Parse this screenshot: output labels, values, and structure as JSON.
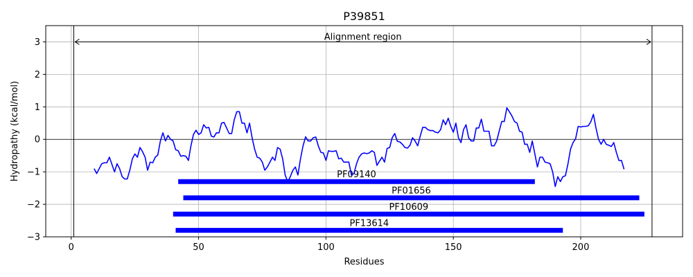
{
  "chart_data": {
    "type": "line",
    "title": "P39851",
    "xlabel": "Residues",
    "ylabel": "Hydropathy (kcal/mol)",
    "xlim": [
      -10,
      240
    ],
    "ylim": [
      -3,
      3.5
    ],
    "xticks": [
      0,
      50,
      100,
      150,
      200
    ],
    "yticks": [
      -3,
      -2,
      -1,
      0,
      1,
      2,
      3
    ],
    "grid": true,
    "line_color": "#0000ff",
    "bar_color": "#0000ff",
    "alignment_region": {
      "label": "Alignment region",
      "start": 1,
      "end": 228,
      "y": 3
    },
    "series": [
      {
        "x": [
          9,
          10,
          12,
          13,
          14,
          15,
          17,
          18,
          19,
          20,
          21,
          22,
          23,
          24,
          25,
          26,
          27,
          28,
          29,
          30,
          31,
          32,
          33,
          34,
          35,
          36,
          37,
          38,
          39,
          40,
          41,
          42,
          43,
          44,
          45,
          46,
          47,
          48,
          49,
          50,
          51,
          52,
          53,
          54,
          55,
          56,
          57,
          58,
          59,
          60,
          61,
          62,
          63,
          64,
          65,
          66,
          67,
          68,
          69,
          70,
          71,
          72,
          73,
          74,
          75,
          76,
          77,
          78,
          79,
          80,
          81,
          82,
          83,
          84,
          85,
          86,
          87,
          88,
          89,
          90,
          91,
          92,
          93,
          94,
          95,
          96,
          97,
          98,
          99,
          100,
          101,
          102,
          103,
          104,
          105,
          106,
          107,
          108,
          109,
          110,
          111,
          112,
          113,
          114,
          115,
          116,
          117,
          118,
          119,
          120,
          121,
          122,
          123,
          124,
          125,
          126,
          127,
          128,
          129,
          130,
          131,
          132,
          133,
          134,
          135,
          136,
          137,
          138,
          139,
          140,
          141,
          142,
          143,
          144,
          145,
          146,
          147,
          148,
          149,
          150,
          151,
          152,
          153,
          154,
          155,
          156,
          157,
          158,
          159,
          160,
          161,
          162,
          163,
          164,
          165,
          166,
          167,
          168,
          169,
          170,
          171,
          172,
          173,
          174,
          175,
          176,
          177,
          178,
          179,
          180,
          181,
          182,
          183,
          184,
          185,
          186,
          187,
          188,
          189,
          190,
          191,
          192,
          193,
          194,
          195,
          196,
          197,
          198,
          199,
          200,
          201,
          202,
          203,
          204,
          205,
          206,
          207,
          208,
          209,
          210,
          211,
          212,
          213,
          214,
          215,
          216,
          217
        ],
        "y": [
          -0.9,
          -1.05,
          -0.75,
          -0.72,
          -0.72,
          -0.55,
          -1.0,
          -0.75,
          -0.9,
          -1.15,
          -1.22,
          -1.22,
          -0.95,
          -0.6,
          -0.45,
          -0.55,
          -0.25,
          -0.38,
          -0.55,
          -0.95,
          -0.7,
          -0.72,
          -0.55,
          -0.48,
          -0.05,
          0.2,
          -0.05,
          0.12,
          0.0,
          -0.05,
          -0.32,
          -0.35,
          -0.52,
          -0.5,
          -0.52,
          -0.65,
          -0.2,
          0.15,
          0.28,
          0.15,
          0.2,
          0.45,
          0.35,
          0.37,
          0.1,
          0.07,
          0.2,
          0.2,
          0.5,
          0.52,
          0.35,
          0.18,
          0.18,
          0.6,
          0.85,
          0.85,
          0.5,
          0.5,
          0.2,
          0.5,
          0.05,
          -0.3,
          -0.55,
          -0.58,
          -0.7,
          -0.95,
          -0.85,
          -0.7,
          -0.55,
          -0.65,
          -0.25,
          -0.3,
          -0.6,
          -1.1,
          -1.3,
          -1.15,
          -0.95,
          -0.85,
          -1.1,
          -0.6,
          -0.2,
          0.08,
          -0.05,
          -0.05,
          0.05,
          0.07,
          -0.2,
          -0.4,
          -0.42,
          -0.65,
          -0.35,
          -0.37,
          -0.37,
          -0.35,
          -0.6,
          -0.58,
          -0.7,
          -0.7,
          -0.7,
          -1.1,
          -1.05,
          -0.75,
          -0.55,
          -0.45,
          -0.42,
          -0.44,
          -0.42,
          -0.35,
          -0.4,
          -0.8,
          -0.67,
          -0.55,
          -0.7,
          -0.28,
          -0.25,
          0.05,
          0.18,
          -0.06,
          -0.08,
          -0.15,
          -0.25,
          -0.27,
          -0.18,
          0.05,
          -0.05,
          -0.2,
          0.1,
          0.37,
          0.37,
          0.3,
          0.27,
          0.27,
          0.22,
          0.2,
          0.3,
          0.6,
          0.45,
          0.65,
          0.4,
          0.22,
          0.5,
          0.05,
          -0.1,
          0.3,
          0.45,
          0.05,
          -0.05,
          -0.05,
          0.35,
          0.35,
          0.62,
          0.25,
          0.25,
          0.25,
          -0.2,
          -0.2,
          -0.05,
          0.25,
          0.55,
          0.55,
          0.97,
          0.85,
          0.72,
          0.55,
          0.5,
          0.25,
          0.22,
          -0.15,
          -0.15,
          -0.4,
          -0.05,
          -0.45,
          -0.85,
          -0.55,
          -0.55,
          -0.7,
          -0.72,
          -0.75,
          -1.0,
          -1.45,
          -1.15,
          -1.3,
          -1.15,
          -1.12,
          -0.75,
          -0.3,
          -0.1,
          0.02,
          0.4,
          0.38,
          0.4,
          0.4,
          0.42,
          0.55,
          0.77,
          0.35,
          0.0,
          -0.15,
          0.0,
          -0.15,
          -0.18,
          -0.22,
          -0.1,
          -0.4,
          -0.65,
          -0.65,
          -0.92
        ]
      }
    ],
    "domains": [
      {
        "name": "PF09140",
        "start": 42,
        "end": 182,
        "y": -1.3
      },
      {
        "name": "PF01656",
        "start": 44,
        "end": 223,
        "y": -1.8
      },
      {
        "name": "PF10609",
        "start": 40,
        "end": 225,
        "y": -2.3
      },
      {
        "name": "PF13614",
        "start": 41,
        "end": 193,
        "y": -2.8
      }
    ]
  }
}
